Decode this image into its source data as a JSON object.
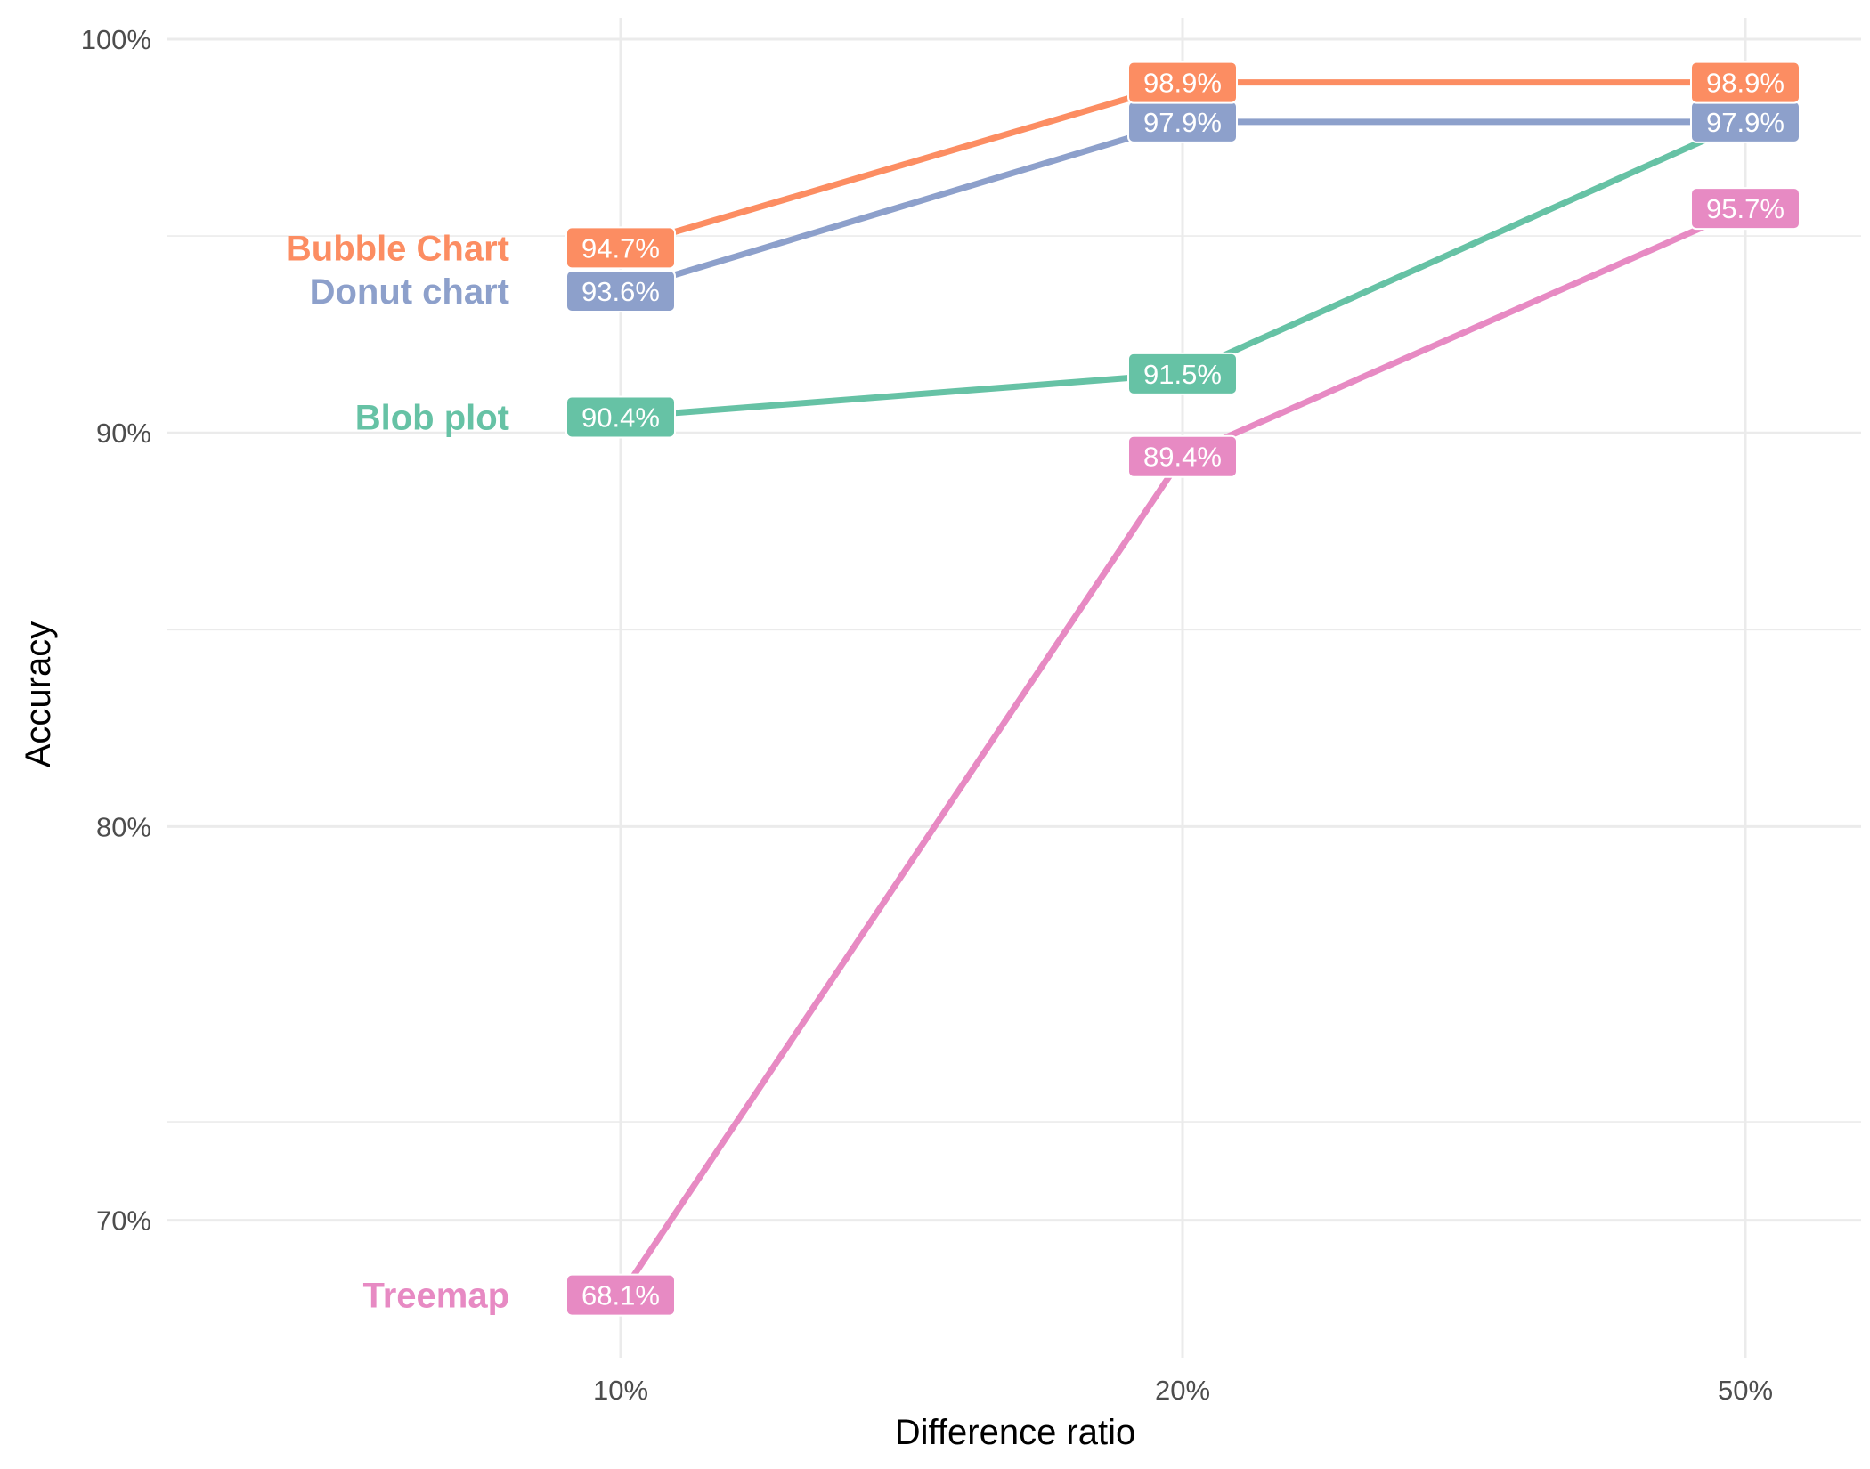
{
  "chart_data": {
    "type": "line",
    "xlabel": "Difference ratio",
    "ylabel": "Accuracy",
    "categories": [
      "10%",
      "20%",
      "50%"
    ],
    "ylim": [
      66.5,
      100.5
    ],
    "yticks": [
      70,
      80,
      90,
      100
    ],
    "ytick_labels": [
      "70%",
      "80%",
      "90%",
      "100%"
    ],
    "grid": true,
    "legend": "direct labels at left",
    "series": [
      {
        "name": "Bubble Chart",
        "color": "#FC8D62",
        "values": [
          94.7,
          98.9,
          98.9
        ],
        "labels": [
          "94.7%",
          "98.9%",
          "98.9%"
        ]
      },
      {
        "name": "Donut chart",
        "color": "#8DA0CB",
        "values": [
          93.6,
          97.9,
          97.9
        ],
        "labels": [
          "93.6%",
          "97.9%",
          "97.9%"
        ]
      },
      {
        "name": "Blob plot",
        "color": "#66C2A5",
        "values": [
          90.4,
          91.5,
          97.9
        ],
        "labels": [
          "90.4%",
          "91.5%",
          ""
        ]
      },
      {
        "name": "Treemap",
        "color": "#E78AC3",
        "values": [
          68.1,
          89.4,
          95.7
        ],
        "labels": [
          "68.1%",
          "89.4%",
          "95.7%"
        ]
      }
    ]
  }
}
